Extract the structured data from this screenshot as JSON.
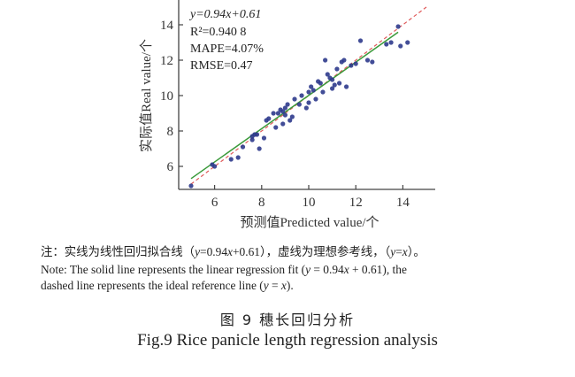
{
  "chart_data": {
    "type": "scatter",
    "xlabel": "预测值Predicted value/个",
    "ylabel": "实际值Real value/个",
    "xlim": [
      4.7,
      15.4
    ],
    "ylim": [
      4.7,
      15.4
    ],
    "xticks": [
      6,
      8,
      10,
      12,
      14
    ],
    "yticks": [
      6,
      8,
      10,
      12,
      14
    ],
    "xtick_labels": [
      "6",
      "8",
      "10",
      "12",
      "14"
    ],
    "ytick_labels": [
      "6",
      "8",
      "10",
      "12",
      "14"
    ],
    "grid": false,
    "annotations": {
      "equation": "y=0.94x+0.61",
      "r2_label": "R²=0.940 8",
      "mape": "MAPE=4.07%",
      "rmse": "RMSE=0.47"
    },
    "fit_line": {
      "slope": 0.94,
      "intercept": 0.61,
      "x_range": [
        5.0,
        13.8
      ],
      "color": "#3a9a3a",
      "style": "solid"
    },
    "reference_line": {
      "slope": 1,
      "intercept": 0,
      "x_range": [
        5.0,
        15.0
      ],
      "color": "#e05a5a",
      "style": "dashed"
    },
    "point_color": "#2e3a8c",
    "points": [
      [
        5.0,
        4.9
      ],
      [
        5.9,
        6.1
      ],
      [
        6.0,
        6.0
      ],
      [
        6.7,
        6.4
      ],
      [
        7.2,
        7.1
      ],
      [
        7.0,
        6.5
      ],
      [
        7.6,
        7.5
      ],
      [
        7.8,
        7.8
      ],
      [
        7.9,
        7.0
      ],
      [
        8.1,
        7.6
      ],
      [
        7.6,
        7.7
      ],
      [
        7.7,
        7.8
      ],
      [
        8.3,
        8.7
      ],
      [
        8.2,
        8.6
      ],
      [
        8.5,
        9.0
      ],
      [
        8.7,
        9.0
      ],
      [
        8.6,
        8.2
      ],
      [
        8.9,
        8.4
      ],
      [
        8.8,
        9.2
      ],
      [
        9.0,
        9.3
      ],
      [
        9.1,
        9.5
      ],
      [
        9.2,
        8.6
      ],
      [
        9.3,
        8.8
      ],
      [
        9.0,
        8.9
      ],
      [
        8.9,
        9.1
      ],
      [
        9.4,
        9.8
      ],
      [
        9.6,
        9.5
      ],
      [
        9.7,
        10.0
      ],
      [
        9.9,
        9.3
      ],
      [
        10.0,
        10.2
      ],
      [
        10.1,
        10.5
      ],
      [
        10.2,
        10.3
      ],
      [
        10.0,
        9.6
      ],
      [
        10.4,
        10.8
      ],
      [
        10.5,
        10.7
      ],
      [
        10.3,
        9.8
      ],
      [
        10.6,
        10.2
      ],
      [
        10.8,
        11.2
      ],
      [
        10.9,
        11.0
      ],
      [
        11.0,
        10.4
      ],
      [
        11.1,
        10.6
      ],
      [
        11.2,
        11.5
      ],
      [
        11.4,
        11.9
      ],
      [
        11.5,
        12.0
      ],
      [
        11.3,
        10.7
      ],
      [
        11.6,
        10.5
      ],
      [
        10.7,
        12.0
      ],
      [
        11.0,
        10.9
      ],
      [
        11.8,
        11.7
      ],
      [
        12.2,
        13.1
      ],
      [
        12.0,
        11.8
      ],
      [
        12.5,
        12.0
      ],
      [
        12.7,
        11.9
      ],
      [
        13.3,
        12.9
      ],
      [
        13.5,
        13.0
      ],
      [
        13.8,
        13.9
      ],
      [
        13.9,
        12.8
      ],
      [
        14.2,
        13.0
      ]
    ]
  },
  "note": {
    "cn_prefix": "注：实线为线性回归拟合线（",
    "cn_eq": "y",
    "cn_mid": "=0.94",
    "cn_x": "x",
    "cn_mid2": "+0.61），虚线为理想参考线，（",
    "cn_y2": "y",
    "cn_eqsign": "=",
    "cn_x2": "x",
    "cn_suffix": "）。",
    "en_line1_a": "Note: The solid line represents the linear regression fit (",
    "en_line1_y": "y",
    "en_line1_b": " = 0.94",
    "en_line1_x": "x",
    "en_line1_c": " + 0.61), the",
    "en_line2_a": "dashed line represents the ideal reference line (",
    "en_line2_y": "y",
    "en_line2_b": " = ",
    "en_line2_x": "x",
    "en_line2_c": ")."
  },
  "caption": {
    "cn": "图 9   穗长回归分析",
    "en": "Fig.9    Rice panicle length regression analysis"
  }
}
